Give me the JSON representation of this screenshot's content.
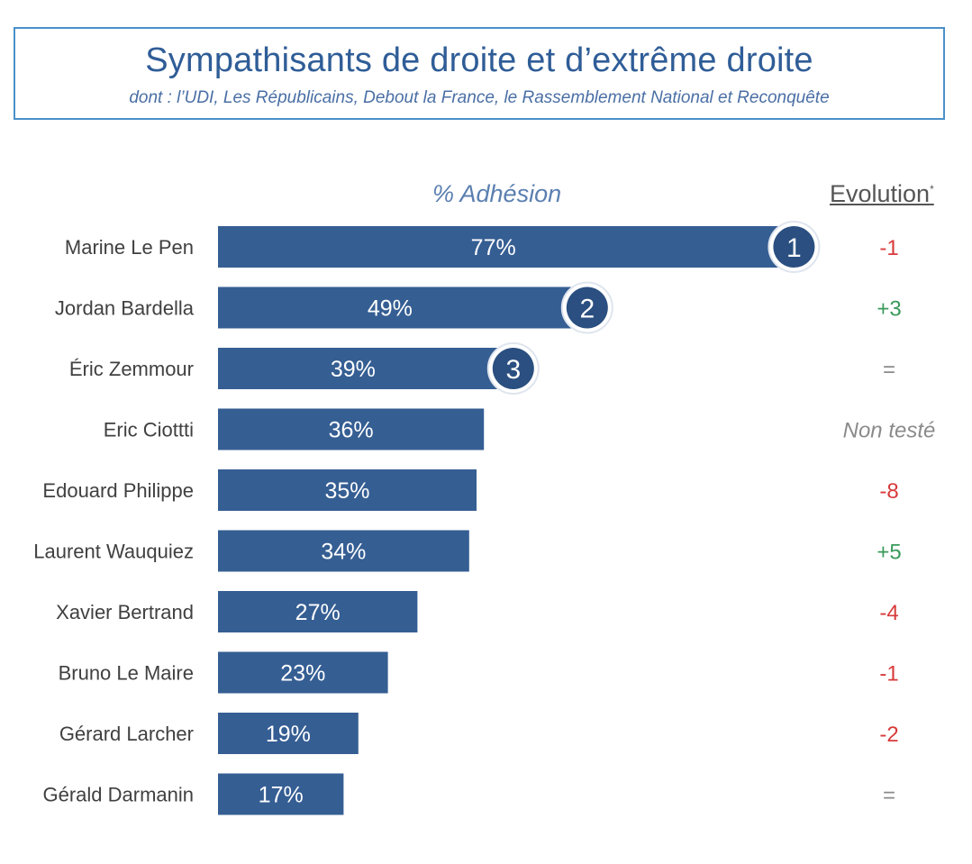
{
  "header": {
    "title": "Sympathisants de droite et d’extrême droite",
    "subtitle": "dont : l’UDI, Les Républicains, Debout la France, le Rassemblement National et Reconquête"
  },
  "columns": {
    "adhesion": "% Adhésion",
    "evolution": "Evolution",
    "evolution_mark": "*"
  },
  "colors": {
    "bar": "#355e93",
    "badge": "#2a4f80",
    "negative": "#d83a3a",
    "positive": "#3a9a5b",
    "neutral": "#8a8a8a"
  },
  "chart_data": {
    "type": "bar",
    "orientation": "horizontal",
    "xlim": [
      0,
      100
    ],
    "categories": [
      "Marine Le Pen",
      "Jordan Bardella",
      "Éric Zemmour",
      "Eric Ciottti",
      "Edouard Philippe",
      "Laurent Wauquiez",
      "Xavier Bertrand",
      "Bruno Le Maire",
      "Gérard Larcher",
      "Gérald Darmanin"
    ],
    "values": [
      77,
      49,
      39,
      36,
      35,
      34,
      27,
      23,
      19,
      17
    ],
    "value_labels": [
      "77%",
      "49%",
      "39%",
      "36%",
      "35%",
      "34%",
      "27%",
      "23%",
      "19%",
      "17%"
    ],
    "ranks": [
      "1",
      "2",
      "3",
      "",
      "",
      "",
      "",
      "",
      "",
      ""
    ],
    "evolution": [
      "-1",
      "+3",
      "=",
      "Non testé",
      "-8",
      "+5",
      "-4",
      "-1",
      "-2",
      "="
    ]
  }
}
